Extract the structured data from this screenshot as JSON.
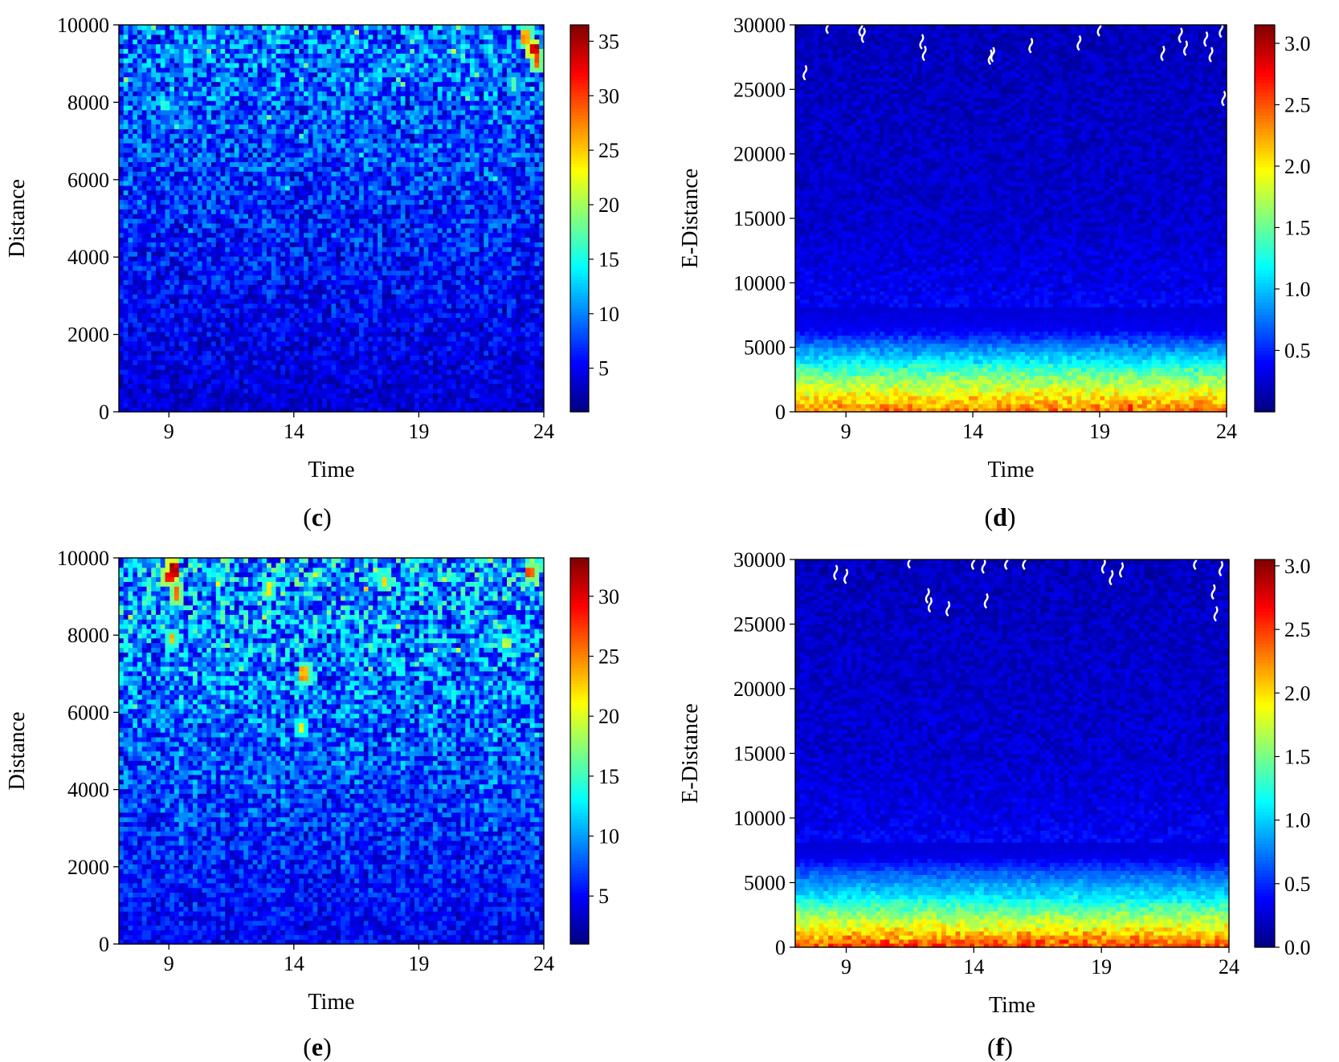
{
  "chart_data": [
    {
      "panel": "c",
      "type": "heatmap",
      "caption": "c",
      "xlabel": "Time",
      "ylabel": "Distance",
      "xlim": [
        7,
        24
      ],
      "ylim": [
        0,
        10000
      ],
      "xticks": [
        9,
        14,
        19,
        24
      ],
      "yticks": [
        0,
        2000,
        4000,
        6000,
        8000,
        10000
      ],
      "colorbar": {
        "min": 1,
        "max": 36.5,
        "ticks": [
          5,
          10,
          15,
          20,
          25,
          30,
          35
        ],
        "colormap": "jet"
      },
      "value_profile": {
        "bottom": 4,
        "top": 10,
        "spread": 4,
        "peak": 36
      },
      "hotspots": [
        {
          "x": 23.6,
          "y": 9400,
          "value": 36
        },
        {
          "x": 23.3,
          "y": 9700,
          "value": 28
        },
        {
          "x": 23.7,
          "y": 9100,
          "value": 30
        },
        {
          "x": 22.8,
          "y": 8500,
          "value": 18
        },
        {
          "x": 8.9,
          "y": 7900,
          "value": 16
        },
        {
          "x": 9.7,
          "y": 9200,
          "value": 15
        }
      ],
      "gaps": []
    },
    {
      "panel": "d",
      "type": "heatmap",
      "caption": "d",
      "xlabel": "Time",
      "ylabel": "E-Distance",
      "xlim": [
        7,
        24
      ],
      "ylim": [
        0,
        30000
      ],
      "xticks": [
        9,
        14,
        19,
        24
      ],
      "yticks": [
        0,
        5000,
        10000,
        15000,
        20000,
        25000,
        30000
      ],
      "colorbar": {
        "min": 0,
        "max": 3.15,
        "ticks": [
          0.5,
          1.0,
          1.5,
          2.0,
          2.5,
          3.0
        ],
        "colormap": "jet"
      },
      "value_profile": [
        {
          "y": 0,
          "value": 2.4
        },
        {
          "y": 1300,
          "value": 2.0
        },
        {
          "y": 2800,
          "value": 1.55
        },
        {
          "y": 4000,
          "value": 1.1
        },
        {
          "y": 5200,
          "value": 0.75
        },
        {
          "y": 6400,
          "value": 0.35
        },
        {
          "y": 9000,
          "value": 0.22
        },
        {
          "y": 15000,
          "value": 0.12
        },
        {
          "y": 30000,
          "value": 0.06
        }
      ],
      "hotspots": [
        {
          "x": 20.2,
          "y": 400,
          "value": 2.9
        },
        {
          "x": 11.5,
          "y": 200,
          "value": 2.5
        },
        {
          "x": 16.0,
          "y": 150,
          "value": 2.6
        },
        {
          "x": 23.1,
          "y": 500,
          "value": 2.5
        }
      ],
      "gaps": [
        {
          "x": 8.3,
          "y": 29900
        },
        {
          "x": 9.6,
          "y": 29700
        },
        {
          "x": 9.7,
          "y": 29200
        },
        {
          "x": 12.0,
          "y": 28700
        },
        {
          "x": 12.1,
          "y": 27800
        },
        {
          "x": 14.7,
          "y": 27500
        },
        {
          "x": 14.8,
          "y": 27700
        },
        {
          "x": 16.3,
          "y": 28400
        },
        {
          "x": 18.2,
          "y": 28600
        },
        {
          "x": 19.0,
          "y": 29700
        },
        {
          "x": 21.5,
          "y": 27800
        },
        {
          "x": 22.2,
          "y": 29200
        },
        {
          "x": 22.4,
          "y": 28200
        },
        {
          "x": 23.2,
          "y": 28900
        },
        {
          "x": 23.4,
          "y": 27700
        },
        {
          "x": 23.8,
          "y": 29600
        },
        {
          "x": 7.4,
          "y": 26300
        },
        {
          "x": 23.9,
          "y": 24300
        }
      ]
    },
    {
      "panel": "e",
      "type": "heatmap",
      "caption": "e",
      "xlabel": "Time",
      "ylabel": "Distance",
      "xlim": [
        7,
        24
      ],
      "ylim": [
        0,
        10000
      ],
      "xticks": [
        9,
        14,
        19,
        24
      ],
      "yticks": [
        0,
        2000,
        4000,
        6000,
        8000,
        10000
      ],
      "colorbar": {
        "min": 1,
        "max": 33.2,
        "ticks": [
          5,
          10,
          15,
          20,
          25,
          30
        ],
        "colormap": "jet"
      },
      "value_profile": {
        "bottom": 5,
        "top": 11,
        "spread": 4.5,
        "peak": 33
      },
      "hotspots": [
        {
          "x": 9.2,
          "y": 9700,
          "value": 33
        },
        {
          "x": 9.0,
          "y": 9500,
          "value": 30
        },
        {
          "x": 9.3,
          "y": 9100,
          "value": 28
        },
        {
          "x": 9.1,
          "y": 7900,
          "value": 24
        },
        {
          "x": 14.4,
          "y": 7000,
          "value": 25
        },
        {
          "x": 14.3,
          "y": 5600,
          "value": 22
        },
        {
          "x": 13.0,
          "y": 9200,
          "value": 23
        },
        {
          "x": 17.6,
          "y": 9400,
          "value": 24
        },
        {
          "x": 23.5,
          "y": 9600,
          "value": 28
        },
        {
          "x": 22.5,
          "y": 7800,
          "value": 20
        }
      ],
      "gaps": []
    },
    {
      "panel": "f",
      "type": "heatmap",
      "caption": "f",
      "xlabel": "Time",
      "ylabel": "E-Distance",
      "xlim": [
        7,
        24
      ],
      "ylim": [
        0,
        30000
      ],
      "xticks": [
        9,
        14,
        19,
        24
      ],
      "yticks": [
        0,
        5000,
        10000,
        15000,
        20000,
        25000,
        30000
      ],
      "colorbar": {
        "min": 0,
        "max": 3.05,
        "ticks": [
          0.0,
          0.5,
          1.0,
          1.5,
          2.0,
          2.5,
          3.0
        ],
        "colormap": "jet"
      },
      "value_profile": [
        {
          "y": 0,
          "value": 2.5
        },
        {
          "y": 1200,
          "value": 2.0
        },
        {
          "y": 2600,
          "value": 1.55
        },
        {
          "y": 4000,
          "value": 1.05
        },
        {
          "y": 5600,
          "value": 0.7
        },
        {
          "y": 7000,
          "value": 0.3
        },
        {
          "y": 9500,
          "value": 0.2
        },
        {
          "y": 15000,
          "value": 0.12
        },
        {
          "y": 30000,
          "value": 0.06
        }
      ],
      "hotspots": [
        {
          "x": 18.5,
          "y": 800,
          "value": 2.3
        },
        {
          "x": 12.0,
          "y": 500,
          "value": 2.2
        },
        {
          "x": 10.5,
          "y": 100,
          "value": 2.7
        },
        {
          "x": 16.0,
          "y": 100,
          "value": 2.7
        }
      ],
      "gaps": [
        {
          "x": 8.6,
          "y": 29000
        },
        {
          "x": 9.0,
          "y": 28700
        },
        {
          "x": 11.5,
          "y": 29900
        },
        {
          "x": 12.2,
          "y": 27200
        },
        {
          "x": 12.3,
          "y": 26500
        },
        {
          "x": 13.0,
          "y": 26200
        },
        {
          "x": 14.0,
          "y": 29800
        },
        {
          "x": 14.4,
          "y": 29500
        },
        {
          "x": 14.5,
          "y": 26800
        },
        {
          "x": 15.3,
          "y": 29800
        },
        {
          "x": 16.0,
          "y": 29800
        },
        {
          "x": 19.1,
          "y": 29500
        },
        {
          "x": 19.4,
          "y": 28600
        },
        {
          "x": 19.8,
          "y": 29200
        },
        {
          "x": 22.7,
          "y": 29800
        },
        {
          "x": 23.4,
          "y": 27500
        },
        {
          "x": 23.7,
          "y": 29300
        },
        {
          "x": 23.5,
          "y": 25800
        }
      ]
    }
  ]
}
